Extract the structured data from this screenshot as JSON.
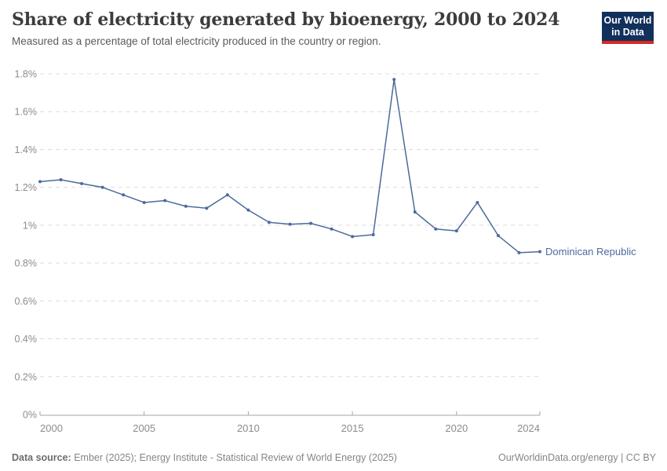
{
  "header": {
    "title": "Share of electricity generated by bioenergy, 2000 to 2024",
    "subtitle": "Measured as a percentage of total electricity produced in the country or region."
  },
  "logo": {
    "line1": "Our World",
    "line2": "in Data"
  },
  "chart_data": {
    "type": "line",
    "title": "Share of electricity generated by bioenergy, 2000 to 2024",
    "xlabel": "",
    "ylabel": "",
    "unit": "%",
    "x": [
      2000,
      2001,
      2002,
      2003,
      2004,
      2005,
      2006,
      2007,
      2008,
      2009,
      2010,
      2011,
      2012,
      2013,
      2014,
      2015,
      2016,
      2017,
      2018,
      2019,
      2020,
      2021,
      2022,
      2023,
      2024
    ],
    "series": [
      {
        "name": "Dominican Republic",
        "values": [
          1.23,
          1.24,
          1.22,
          1.2,
          1.16,
          1.12,
          1.13,
          1.1,
          1.09,
          1.16,
          1.08,
          1.015,
          1.005,
          1.01,
          0.98,
          0.94,
          0.95,
          1.77,
          1.07,
          0.98,
          0.97,
          1.12,
          0.945,
          0.855,
          0.86
        ]
      }
    ],
    "ylim": [
      0,
      1.8
    ],
    "yticks": [
      0,
      0.2,
      0.4,
      0.6,
      0.8,
      1.0,
      1.2,
      1.4,
      1.6,
      1.8
    ],
    "ytick_labels": [
      "0%",
      "0.2%",
      "0.4%",
      "0.6%",
      "0.8%",
      "1%",
      "1.2%",
      "1.4%",
      "1.6%",
      "1.8%"
    ],
    "xticks": [
      2000,
      2005,
      2010,
      2015,
      2020,
      2024
    ],
    "grid": "horizontal-dashed",
    "legend_position": "end-of-line-label",
    "end_label": "Dominican Republic"
  },
  "footer": {
    "source_label": "Data source:",
    "source_text": " Ember (2025); Energy Institute - Statistical Review of World Energy (2025)",
    "license": "OurWorldinData.org/energy | CC BY"
  },
  "colors": {
    "line": "#4c6a9c",
    "grid": "#dcdcdc",
    "axis": "#a5a5a5",
    "tick_label": "#8c8c8c",
    "entity_label": "#4c6a9c",
    "logo_bg": "#12305c",
    "logo_bar": "#d42b21"
  }
}
